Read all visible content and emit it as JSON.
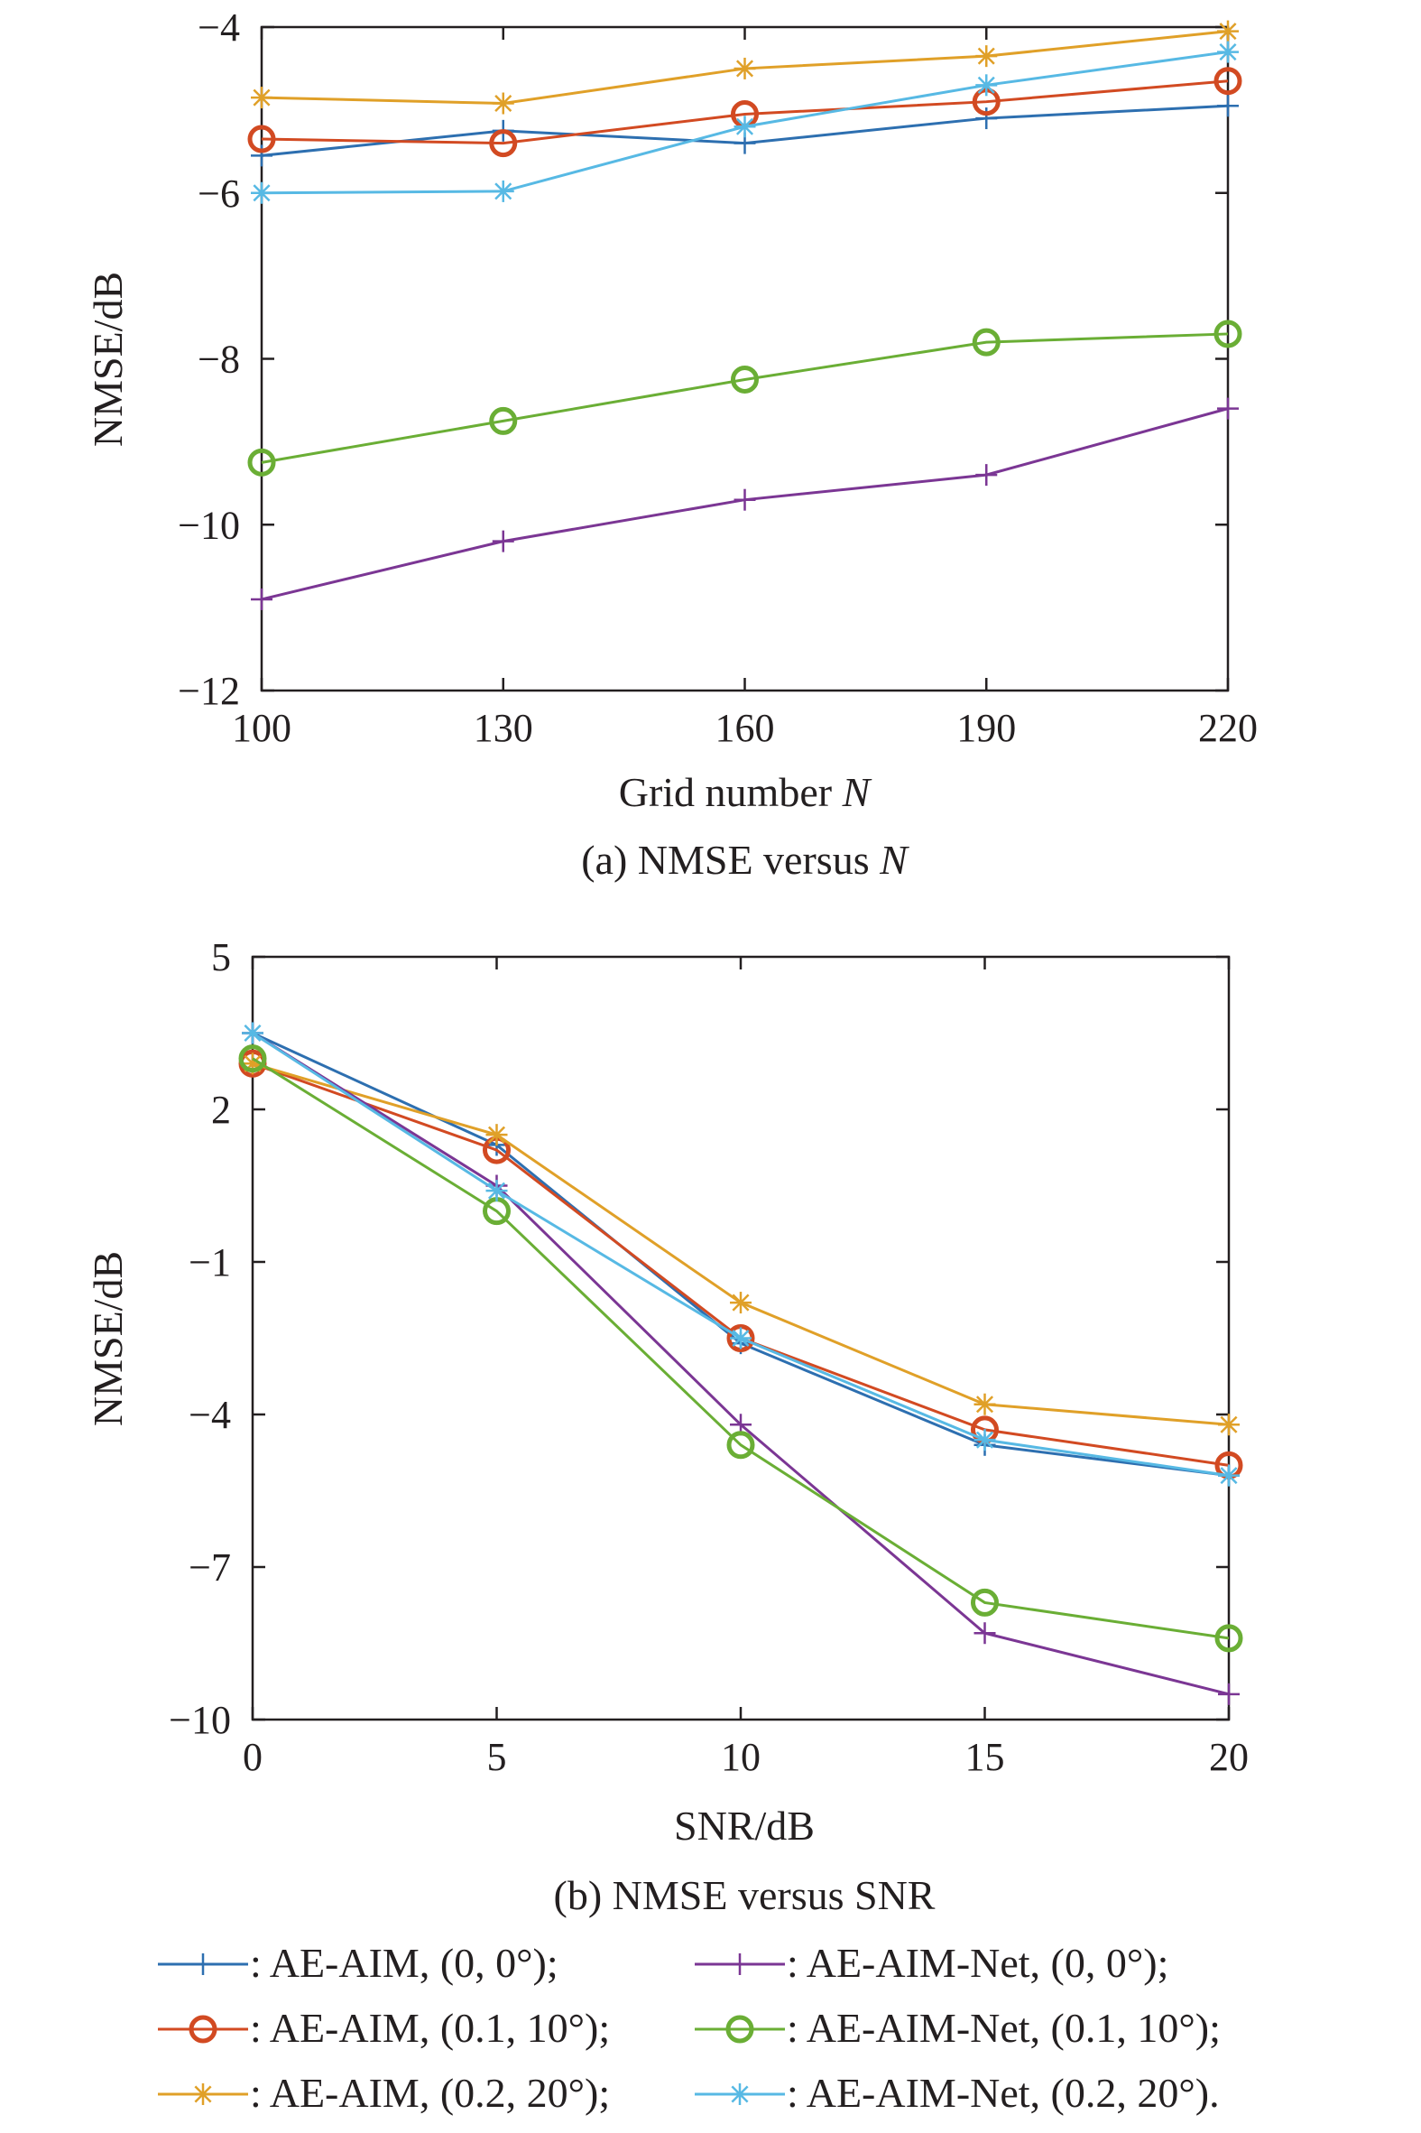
{
  "chart_data": [
    {
      "type": "line",
      "caption_prefix": "(a) NMSE versus ",
      "caption_var": "N",
      "xlabel_prefix": "Grid number ",
      "xlabel_var": "N",
      "ylabel": "NMSE/dB",
      "x": [
        100,
        130,
        160,
        190,
        220
      ],
      "xticks": [
        "100",
        "130",
        "160",
        "190",
        "220"
      ],
      "yticks": [
        "−4",
        "−6",
        "−8",
        "−10",
        "−12"
      ],
      "xlim": [
        100,
        220
      ],
      "ylim": [
        -12,
        -4
      ],
      "grid": false,
      "series": [
        {
          "key": "aeaim_0",
          "values": [
            -5.55,
            -5.25,
            -5.4,
            -5.1,
            -4.95
          ]
        },
        {
          "key": "aeaim_01",
          "values": [
            -5.35,
            -5.4,
            -5.05,
            -4.9,
            -4.65
          ]
        },
        {
          "key": "aeaim_02",
          "values": [
            -4.85,
            -4.92,
            -4.5,
            -4.35,
            -4.05
          ]
        },
        {
          "key": "net_0",
          "values": [
            -10.9,
            -10.2,
            -9.7,
            -9.4,
            -8.6
          ]
        },
        {
          "key": "net_01",
          "values": [
            -9.25,
            -8.75,
            -8.25,
            -7.8,
            -7.7
          ]
        },
        {
          "key": "net_02",
          "values": [
            -6.0,
            -5.98,
            -5.2,
            -4.7,
            -4.3
          ]
        }
      ]
    },
    {
      "type": "line",
      "caption": "(b) NMSE versus SNR",
      "xlabel": "SNR/dB",
      "ylabel": "NMSE/dB",
      "x": [
        0,
        5,
        10,
        15,
        20
      ],
      "xticks": [
        "0",
        "5",
        "10",
        "15",
        "20"
      ],
      "yticks": [
        "5",
        "2",
        "−1",
        "−4",
        "−7",
        "−10"
      ],
      "xlim": [
        0,
        20
      ],
      "ylim": [
        -10,
        5
      ],
      "grid": false,
      "series": [
        {
          "key": "aeaim_0",
          "values": [
            3.5,
            1.3,
            -2.6,
            -4.6,
            -5.2
          ]
        },
        {
          "key": "aeaim_01",
          "values": [
            2.9,
            1.2,
            -2.5,
            -4.3,
            -5.0
          ]
        },
        {
          "key": "aeaim_02",
          "values": [
            2.9,
            1.5,
            -1.8,
            -3.8,
            -4.2
          ]
        },
        {
          "key": "net_0",
          "values": [
            3.5,
            0.5,
            -4.2,
            -8.3,
            -9.5
          ]
        },
        {
          "key": "net_01",
          "values": [
            3.0,
            0.0,
            -4.6,
            -7.7,
            -8.4
          ]
        },
        {
          "key": "net_02",
          "values": [
            3.5,
            0.4,
            -2.5,
            -4.5,
            -5.2
          ]
        }
      ]
    }
  ],
  "legend": {
    "items": [
      {
        "key": "aeaim_0",
        "label": ": AE-AIM, (0, 0°);"
      },
      {
        "key": "net_0",
        "label": ": AE-AIM-Net, (0, 0°);"
      },
      {
        "key": "aeaim_01",
        "label": ": AE-AIM, (0.1, 10°);"
      },
      {
        "key": "net_01",
        "label": ": AE-AIM-Net, (0.1, 10°);"
      },
      {
        "key": "aeaim_02",
        "label": ": AE-AIM, (0.2, 20°);"
      },
      {
        "key": "net_02",
        "label": ": AE-AIM-Net, (0.2, 20°)."
      }
    ]
  },
  "series_styles": {
    "aeaim_0": {
      "color": "#2d6fb0",
      "marker": "plus"
    },
    "aeaim_01": {
      "color": "#d24a22",
      "marker": "circle"
    },
    "aeaim_02": {
      "color": "#e0a028",
      "marker": "star"
    },
    "net_0": {
      "color": "#7b3694",
      "marker": "plus"
    },
    "net_01": {
      "color": "#6aae35",
      "marker": "circle"
    },
    "net_02": {
      "color": "#57b9e4",
      "marker": "star"
    }
  }
}
